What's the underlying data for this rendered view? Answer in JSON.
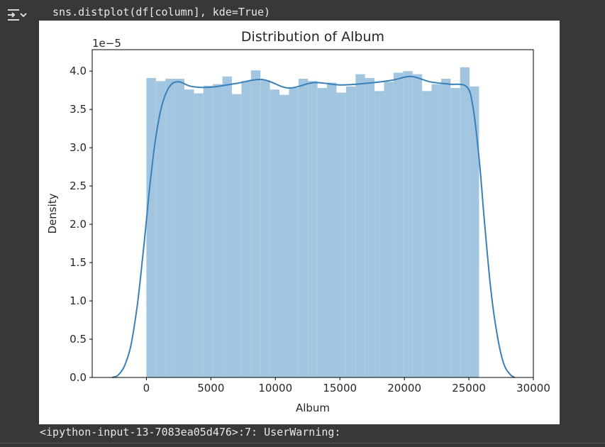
{
  "cell": {
    "code": "sns.distplot(df[column], kde=True)",
    "output_toggle_icon": "output-toggle-icon",
    "warning_text": "<ipython-input-13-7083ea05d476>:7: UserWarning:"
  },
  "chart_data": {
    "type": "bar",
    "title": "Distribution of Album",
    "xlabel": "Album",
    "ylabel": "Density",
    "y_offset_text": "1e−5",
    "y_scale": 1e-05,
    "xlim": [
      -4200,
      30000
    ],
    "ylim": [
      0,
      4.28
    ],
    "xticks": [
      0,
      5000,
      10000,
      15000,
      20000,
      25000,
      30000
    ],
    "xtick_labels": [
      "0",
      "5000",
      "10000",
      "15000",
      "20000",
      "25000",
      "30000"
    ],
    "yticks": [
      0.0,
      0.5,
      1.0,
      1.5,
      2.0,
      2.5,
      3.0,
      3.5,
      4.0
    ],
    "ytick_labels": [
      "0.0",
      "0.5",
      "1.0",
      "1.5",
      "2.0",
      "2.5",
      "3.0",
      "3.5",
      "4.0"
    ],
    "grid": false,
    "legend": "none",
    "histogram": {
      "bin_start": 0,
      "bin_width": 737,
      "values": [
        3.91,
        3.87,
        3.9,
        3.9,
        3.76,
        3.71,
        3.81,
        3.83,
        3.93,
        3.7,
        3.87,
        4.01,
        3.88,
        3.76,
        3.69,
        3.78,
        3.9,
        3.87,
        3.78,
        3.85,
        3.72,
        3.8,
        3.96,
        3.91,
        3.74,
        3.86,
        3.98,
        4.0,
        3.96,
        3.74,
        3.83,
        3.9,
        3.78,
        4.05,
        3.8
      ],
      "color": "#a3c6e0"
    },
    "kde": {
      "color": "#3a80b8",
      "x": [
        -2650,
        -2200,
        -1700,
        -1200,
        -700,
        -300,
        0,
        300,
        700,
        1200,
        1800,
        2500,
        3500,
        5000,
        7000,
        9000,
        11000,
        13000,
        15000,
        17000,
        19000,
        20500,
        22000,
        23500,
        24800,
        25300,
        25800,
        26200,
        26700,
        27200,
        27700,
        28200,
        28550
      ],
      "y": [
        0.0,
        0.03,
        0.15,
        0.42,
        0.95,
        1.55,
        2.05,
        2.55,
        3.1,
        3.55,
        3.8,
        3.86,
        3.8,
        3.79,
        3.84,
        3.89,
        3.78,
        3.85,
        3.82,
        3.84,
        3.88,
        3.93,
        3.86,
        3.83,
        3.8,
        3.55,
        2.85,
        2.05,
        1.15,
        0.55,
        0.18,
        0.04,
        0.0
      ]
    },
    "axis_color": "#000000",
    "text_color": "#262626"
  }
}
